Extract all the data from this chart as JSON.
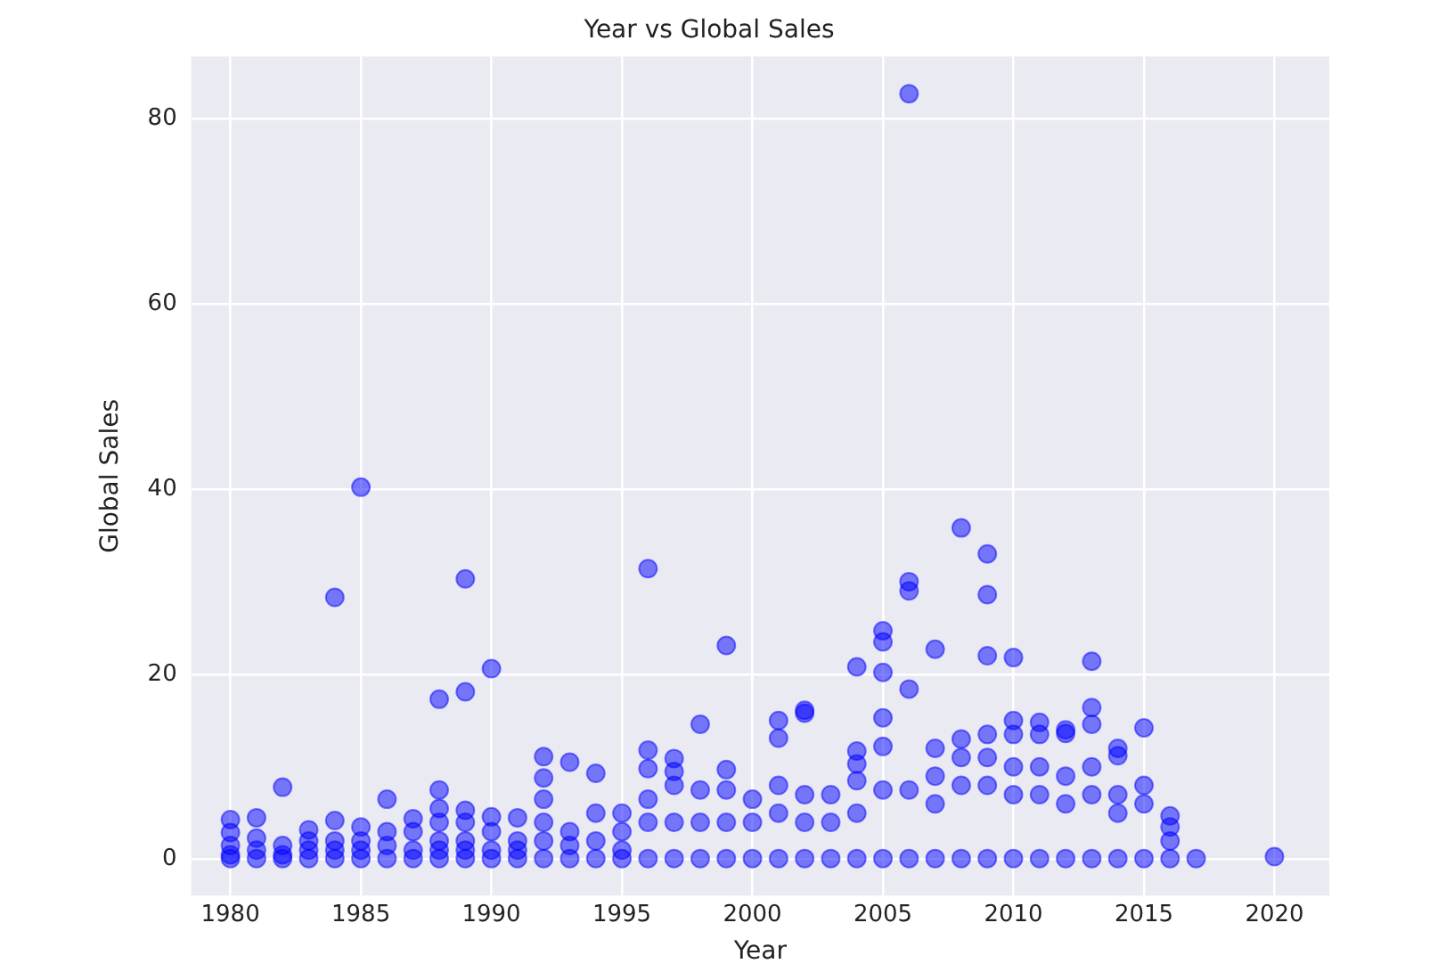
{
  "chart_data": {
    "type": "scatter",
    "title": "Year vs Global Sales",
    "xlabel": "Year",
    "ylabel": "Global Sales",
    "x": [
      1980,
      1980,
      1980,
      1980,
      1980,
      1981,
      1981,
      1981,
      1981,
      1982,
      1982,
      1982,
      1982,
      1983,
      1983,
      1983,
      1983,
      1984,
      1984,
      1984,
      1984,
      1984,
      1985,
      1985,
      1985,
      1985,
      1985,
      1986,
      1986,
      1986,
      1986,
      1987,
      1987,
      1987,
      1987,
      1988,
      1988,
      1988,
      1988,
      1988,
      1988,
      1988,
      1989,
      1989,
      1989,
      1989,
      1989,
      1989,
      1989,
      1990,
      1990,
      1990,
      1990,
      1990,
      1991,
      1991,
      1991,
      1991,
      1992,
      1992,
      1992,
      1992,
      1992,
      1992,
      1993,
      1993,
      1993,
      1993,
      1994,
      1994,
      1994,
      1994,
      1995,
      1995,
      1995,
      1995,
      1996,
      1996,
      1996,
      1996,
      1996,
      1996,
      1997,
      1997,
      1997,
      1997,
      1997,
      1998,
      1998,
      1998,
      1998,
      1999,
      1999,
      1999,
      1999,
      1999,
      2000,
      2000,
      2000,
      2001,
      2001,
      2001,
      2001,
      2001,
      2002,
      2002,
      2002,
      2002,
      2002,
      2003,
      2003,
      2003,
      2004,
      2004,
      2004,
      2004,
      2004,
      2004,
      2005,
      2005,
      2005,
      2005,
      2005,
      2005,
      2005,
      2006,
      2006,
      2006,
      2006,
      2006,
      2006,
      2007,
      2007,
      2007,
      2007,
      2007,
      2008,
      2008,
      2008,
      2008,
      2008,
      2009,
      2009,
      2009,
      2009,
      2009,
      2009,
      2009,
      2010,
      2010,
      2010,
      2010,
      2010,
      2010,
      2011,
      2011,
      2011,
      2011,
      2011,
      2012,
      2012,
      2012,
      2012,
      2012,
      2013,
      2013,
      2013,
      2013,
      2013,
      2013,
      2014,
      2014,
      2014,
      2014,
      2014,
      2015,
      2015,
      2015,
      2015,
      2016,
      2016,
      2016,
      2016,
      2017,
      2020
    ],
    "values": [
      4.3,
      2.9,
      1.5,
      0.5,
      0.1,
      4.5,
      2.3,
      1,
      0.1,
      7.8,
      1.5,
      0.5,
      0.1,
      3.2,
      2,
      1,
      0.1,
      28.3,
      4.2,
      2,
      1,
      0.1,
      40.2,
      3.5,
      2,
      1,
      0.1,
      6.5,
      3,
      1.5,
      0.1,
      4.4,
      3,
      1,
      0.1,
      17.3,
      7.5,
      5.5,
      4,
      2,
      1,
      0.1,
      30.3,
      18.1,
      5.3,
      4,
      2,
      1,
      0.1,
      20.6,
      4.6,
      3,
      1,
      0.1,
      4.5,
      2,
      1,
      0.1,
      11.1,
      8.8,
      6.5,
      4,
      2,
      0.1,
      10.5,
      3,
      1.5,
      0.1,
      9.3,
      5,
      2,
      0.1,
      5,
      3,
      1,
      0.1,
      31.4,
      11.8,
      9.8,
      6.5,
      4,
      0.1,
      10.9,
      9.5,
      8,
      4,
      0.1,
      14.6,
      7.5,
      4,
      0.1,
      23.1,
      9.7,
      7.5,
      4,
      0.1,
      6.5,
      4,
      0.1,
      15,
      13.1,
      8,
      5,
      0.1,
      16.1,
      15.8,
      7,
      4,
      0.1,
      7,
      4,
      0.1,
      20.8,
      11.7,
      10.3,
      8.5,
      5,
      0.1,
      24.7,
      23.5,
      20.2,
      15.3,
      12.2,
      7.5,
      0.1,
      82.7,
      30,
      29,
      18.4,
      7.5,
      0.1,
      22.7,
      12,
      9,
      6,
      0.1,
      35.8,
      13,
      11,
      8,
      0.1,
      33,
      28.6,
      22,
      13.5,
      11,
      8,
      0.1,
      21.8,
      15,
      13.5,
      10,
      7,
      0.1,
      14.8,
      13.5,
      10,
      7,
      0.1,
      14,
      13.6,
      9,
      6,
      0.1,
      21.4,
      16.4,
      14.6,
      10,
      7,
      0.1,
      12,
      11.2,
      7,
      5,
      0.1,
      14.2,
      8,
      6,
      0.1,
      4.7,
      3.5,
      2,
      0.1,
      0.1,
      0.3
    ],
    "color": "#0000ff",
    "marker": "circle",
    "grid": true,
    "legend": false,
    "xlim": [
      1978.5,
      2022.1
    ],
    "xticks": [
      1980,
      1985,
      1990,
      1995,
      2000,
      2005,
      2010,
      2015,
      2020
    ],
    "ylim": [
      -3.9,
      86.7
    ],
    "yticks": [
      0,
      20,
      40,
      60,
      80
    ]
  }
}
